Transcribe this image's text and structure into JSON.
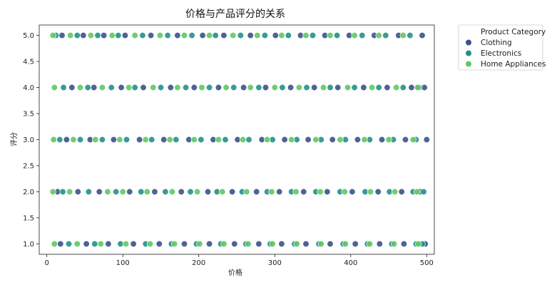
{
  "chart_data": {
    "type": "scatter",
    "title": "价格与产品评分的关系",
    "xlabel": "价格",
    "ylabel": "评分",
    "xlim": [
      -10,
      510
    ],
    "ylim": [
      0.8,
      5.2
    ],
    "x_ticks": [
      0,
      100,
      200,
      300,
      400,
      500
    ],
    "y_ticks": [
      1.0,
      1.5,
      2.0,
      2.5,
      3.0,
      3.5,
      4.0,
      4.5,
      5.0
    ],
    "grid": false,
    "legend": {
      "title": "Product Category",
      "placement": "outside-top-right"
    },
    "series": [
      {
        "name": "Clothing",
        "color": "#3b528b",
        "points": [
          [
            20,
            5
          ],
          [
            48,
            5
          ],
          [
            75,
            5
          ],
          [
            103,
            5
          ],
          [
            137,
            5
          ],
          [
            172,
            5
          ],
          [
            205,
            5
          ],
          [
            233,
            5
          ],
          [
            268,
            5
          ],
          [
            301,
            5
          ],
          [
            334,
            5
          ],
          [
            366,
            5
          ],
          [
            398,
            5
          ],
          [
            431,
            5
          ],
          [
            463,
            5
          ],
          [
            494,
            5
          ],
          [
            33,
            4
          ],
          [
            62,
            4
          ],
          [
            98,
            4
          ],
          [
            127,
            4
          ],
          [
            163,
            4
          ],
          [
            194,
            4
          ],
          [
            226,
            4
          ],
          [
            259,
            4
          ],
          [
            288,
            4
          ],
          [
            321,
            4
          ],
          [
            352,
            4
          ],
          [
            383,
            4
          ],
          [
            417,
            4
          ],
          [
            448,
            4
          ],
          [
            480,
            4
          ],
          [
            497,
            4
          ],
          [
            26,
            3
          ],
          [
            57,
            3
          ],
          [
            88,
            3
          ],
          [
            122,
            3
          ],
          [
            154,
            3
          ],
          [
            187,
            3
          ],
          [
            219,
            3
          ],
          [
            251,
            3
          ],
          [
            283,
            3
          ],
          [
            313,
            3
          ],
          [
            344,
            3
          ],
          [
            376,
            3
          ],
          [
            409,
            3
          ],
          [
            441,
            3
          ],
          [
            472,
            3
          ],
          [
            500,
            3
          ],
          [
            14,
            2
          ],
          [
            41,
            2
          ],
          [
            69,
            2
          ],
          [
            109,
            2
          ],
          [
            142,
            2
          ],
          [
            177,
            2
          ],
          [
            212,
            2
          ],
          [
            244,
            2
          ],
          [
            276,
            2
          ],
          [
            306,
            2
          ],
          [
            338,
            2
          ],
          [
            369,
            2
          ],
          [
            402,
            2
          ],
          [
            436,
            2
          ],
          [
            467,
            2
          ],
          [
            491,
            2
          ],
          [
            18,
            1
          ],
          [
            52,
            1
          ],
          [
            81,
            1
          ],
          [
            114,
            1
          ],
          [
            148,
            1
          ],
          [
            181,
            1
          ],
          [
            214,
            1
          ],
          [
            247,
            1
          ],
          [
            279,
            1
          ],
          [
            309,
            1
          ],
          [
            341,
            1
          ],
          [
            373,
            1
          ],
          [
            406,
            1
          ],
          [
            438,
            1
          ],
          [
            470,
            1
          ],
          [
            498,
            1
          ]
        ]
      },
      {
        "name": "Electronics",
        "color": "#21918c",
        "points": [
          [
            12,
            5
          ],
          [
            40,
            5
          ],
          [
            67,
            5
          ],
          [
            94,
            5
          ],
          [
            126,
            5
          ],
          [
            159,
            5
          ],
          [
            191,
            5
          ],
          [
            222,
            5
          ],
          [
            255,
            5
          ],
          [
            287,
            5
          ],
          [
            318,
            5
          ],
          [
            350,
            5
          ],
          [
            382,
            5
          ],
          [
            415,
            5
          ],
          [
            446,
            5
          ],
          [
            478,
            5
          ],
          [
            22,
            4
          ],
          [
            54,
            4
          ],
          [
            85,
            4
          ],
          [
            116,
            4
          ],
          [
            150,
            4
          ],
          [
            183,
            4
          ],
          [
            214,
            4
          ],
          [
            246,
            4
          ],
          [
            279,
            4
          ],
          [
            310,
            4
          ],
          [
            342,
            4
          ],
          [
            373,
            4
          ],
          [
            405,
            4
          ],
          [
            437,
            4
          ],
          [
            469,
            4
          ],
          [
            490,
            4
          ],
          [
            17,
            3
          ],
          [
            44,
            3
          ],
          [
            73,
            3
          ],
          [
            105,
            3
          ],
          [
            138,
            3
          ],
          [
            170,
            3
          ],
          [
            203,
            3
          ],
          [
            235,
            3
          ],
          [
            266,
            3
          ],
          [
            297,
            3
          ],
          [
            329,
            3
          ],
          [
            361,
            3
          ],
          [
            393,
            3
          ],
          [
            425,
            3
          ],
          [
            456,
            3
          ],
          [
            486,
            3
          ],
          [
            21,
            2
          ],
          [
            55,
            2
          ],
          [
            91,
            2
          ],
          [
            124,
            2
          ],
          [
            156,
            2
          ],
          [
            189,
            2
          ],
          [
            224,
            2
          ],
          [
            257,
            2
          ],
          [
            290,
            2
          ],
          [
            322,
            2
          ],
          [
            354,
            2
          ],
          [
            386,
            2
          ],
          [
            419,
            2
          ],
          [
            451,
            2
          ],
          [
            482,
            2
          ],
          [
            496,
            2
          ],
          [
            29,
            1
          ],
          [
            63,
            1
          ],
          [
            97,
            1
          ],
          [
            130,
            1
          ],
          [
            164,
            1
          ],
          [
            197,
            1
          ],
          [
            229,
            1
          ],
          [
            262,
            1
          ],
          [
            294,
            1
          ],
          [
            326,
            1
          ],
          [
            358,
            1
          ],
          [
            390,
            1
          ],
          [
            422,
            1
          ],
          [
            454,
            1
          ],
          [
            486,
            1
          ],
          [
            494,
            1
          ]
        ]
      },
      {
        "name": "Home Appliances",
        "color": "#5ec962",
        "points": [
          [
            8,
            5
          ],
          [
            31,
            5
          ],
          [
            58,
            5
          ],
          [
            86,
            5
          ],
          [
            116,
            5
          ],
          [
            149,
            5
          ],
          [
            181,
            5
          ],
          [
            214,
            5
          ],
          [
            245,
            5
          ],
          [
            277,
            5
          ],
          [
            309,
            5
          ],
          [
            341,
            5
          ],
          [
            373,
            5
          ],
          [
            405,
            5
          ],
          [
            437,
            5
          ],
          [
            469,
            5
          ],
          [
            10,
            4
          ],
          [
            44,
            4
          ],
          [
            73,
            4
          ],
          [
            108,
            4
          ],
          [
            140,
            4
          ],
          [
            172,
            4
          ],
          [
            204,
            4
          ],
          [
            236,
            4
          ],
          [
            268,
            4
          ],
          [
            300,
            4
          ],
          [
            332,
            4
          ],
          [
            364,
            4
          ],
          [
            396,
            4
          ],
          [
            428,
            4
          ],
          [
            460,
            4
          ],
          [
            488,
            4
          ],
          [
            9,
            3
          ],
          [
            35,
            3
          ],
          [
            64,
            3
          ],
          [
            96,
            3
          ],
          [
            130,
            3
          ],
          [
            162,
            3
          ],
          [
            194,
            3
          ],
          [
            226,
            3
          ],
          [
            258,
            3
          ],
          [
            290,
            3
          ],
          [
            322,
            3
          ],
          [
            354,
            3
          ],
          [
            386,
            3
          ],
          [
            418,
            3
          ],
          [
            450,
            3
          ],
          [
            482,
            3
          ],
          [
            8,
            2
          ],
          [
            30,
            2
          ],
          [
            80,
            2
          ],
          [
            100,
            2
          ],
          [
            132,
            2
          ],
          [
            165,
            2
          ],
          [
            198,
            2
          ],
          [
            231,
            2
          ],
          [
            263,
            2
          ],
          [
            296,
            2
          ],
          [
            328,
            2
          ],
          [
            360,
            2
          ],
          [
            392,
            2
          ],
          [
            426,
            2
          ],
          [
            458,
            2
          ],
          [
            487,
            2
          ],
          [
            10,
            1
          ],
          [
            40,
            1
          ],
          [
            71,
            1
          ],
          [
            104,
            1
          ],
          [
            136,
            1
          ],
          [
            168,
            1
          ],
          [
            201,
            1
          ],
          [
            233,
            1
          ],
          [
            265,
            1
          ],
          [
            297,
            1
          ],
          [
            329,
            1
          ],
          [
            361,
            1
          ],
          [
            393,
            1
          ],
          [
            425,
            1
          ],
          [
            457,
            1
          ],
          [
            489,
            1
          ]
        ]
      }
    ]
  }
}
